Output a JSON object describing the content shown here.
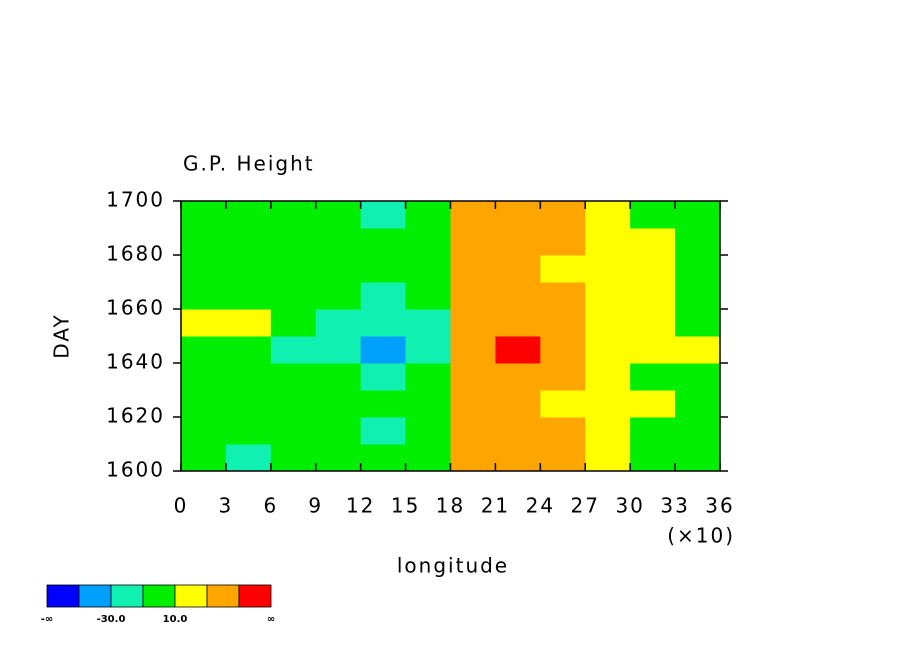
{
  "chart_data": {
    "type": "heatmap",
    "title": "G.P. Height",
    "x_label": "longitude",
    "x_multiplier": "(×10)",
    "y_label": "DAY",
    "xlim": [
      0,
      36
    ],
    "xticks": [
      0,
      3,
      6,
      9,
      12,
      15,
      18,
      21,
      24,
      27,
      30,
      33,
      36
    ],
    "ylim": [
      1600,
      1700
    ],
    "yticks": [
      1600,
      1620,
      1640,
      1660,
      1680,
      1700
    ],
    "x": [
      1.5,
      4.5,
      7.5,
      10.5,
      13.5,
      16.5,
      19.5,
      22.5,
      25.5,
      28.5,
      31.5,
      34.5
    ],
    "y": [
      1605,
      1615,
      1625,
      1635,
      1645,
      1655,
      1665,
      1675,
      1685,
      1695
    ],
    "z": [
      [
        -5,
        -15,
        0,
        -5,
        -10,
        -10,
        35,
        48,
        35,
        20,
        5,
        0
      ],
      [
        0,
        -5,
        5,
        -10,
        -15,
        -5,
        30,
        42,
        30,
        15,
        5,
        0
      ],
      [
        5,
        0,
        -5,
        -10,
        -5,
        0,
        30,
        38,
        25,
        20,
        10,
        5
      ],
      [
        0,
        -5,
        0,
        -10,
        -15,
        -5,
        35,
        42,
        30,
        15,
        5,
        0
      ],
      [
        -5,
        -10,
        -15,
        -20,
        -35,
        -15,
        40,
        52,
        35,
        25,
        15,
        10
      ],
      [
        15,
        20,
        5,
        -15,
        -25,
        -20,
        30,
        40,
        30,
        20,
        15,
        5
      ],
      [
        0,
        -10,
        -5,
        -10,
        -15,
        -10,
        30,
        40,
        30,
        20,
        10,
        0
      ],
      [
        0,
        5,
        0,
        -5,
        -10,
        0,
        35,
        40,
        25,
        15,
        10,
        5
      ],
      [
        -5,
        0,
        -5,
        -10,
        -5,
        5,
        35,
        42,
        30,
        20,
        10,
        0
      ],
      [
        0,
        -5,
        0,
        -10,
        -15,
        0,
        30,
        45,
        30,
        15,
        5,
        0
      ]
    ],
    "colorbar": {
      "levels": [
        null,
        -50,
        -30,
        -10,
        10,
        30,
        50,
        null
      ],
      "level_labels": [
        "-∞",
        null,
        "-30.0",
        null,
        "10.0",
        null,
        null,
        "∞"
      ],
      "colors": [
        "#0000ff",
        "#00a0ff",
        "#10f0b0",
        "#00ee00",
        "#ffff00",
        "#ffa500",
        "#ff0000"
      ]
    }
  }
}
